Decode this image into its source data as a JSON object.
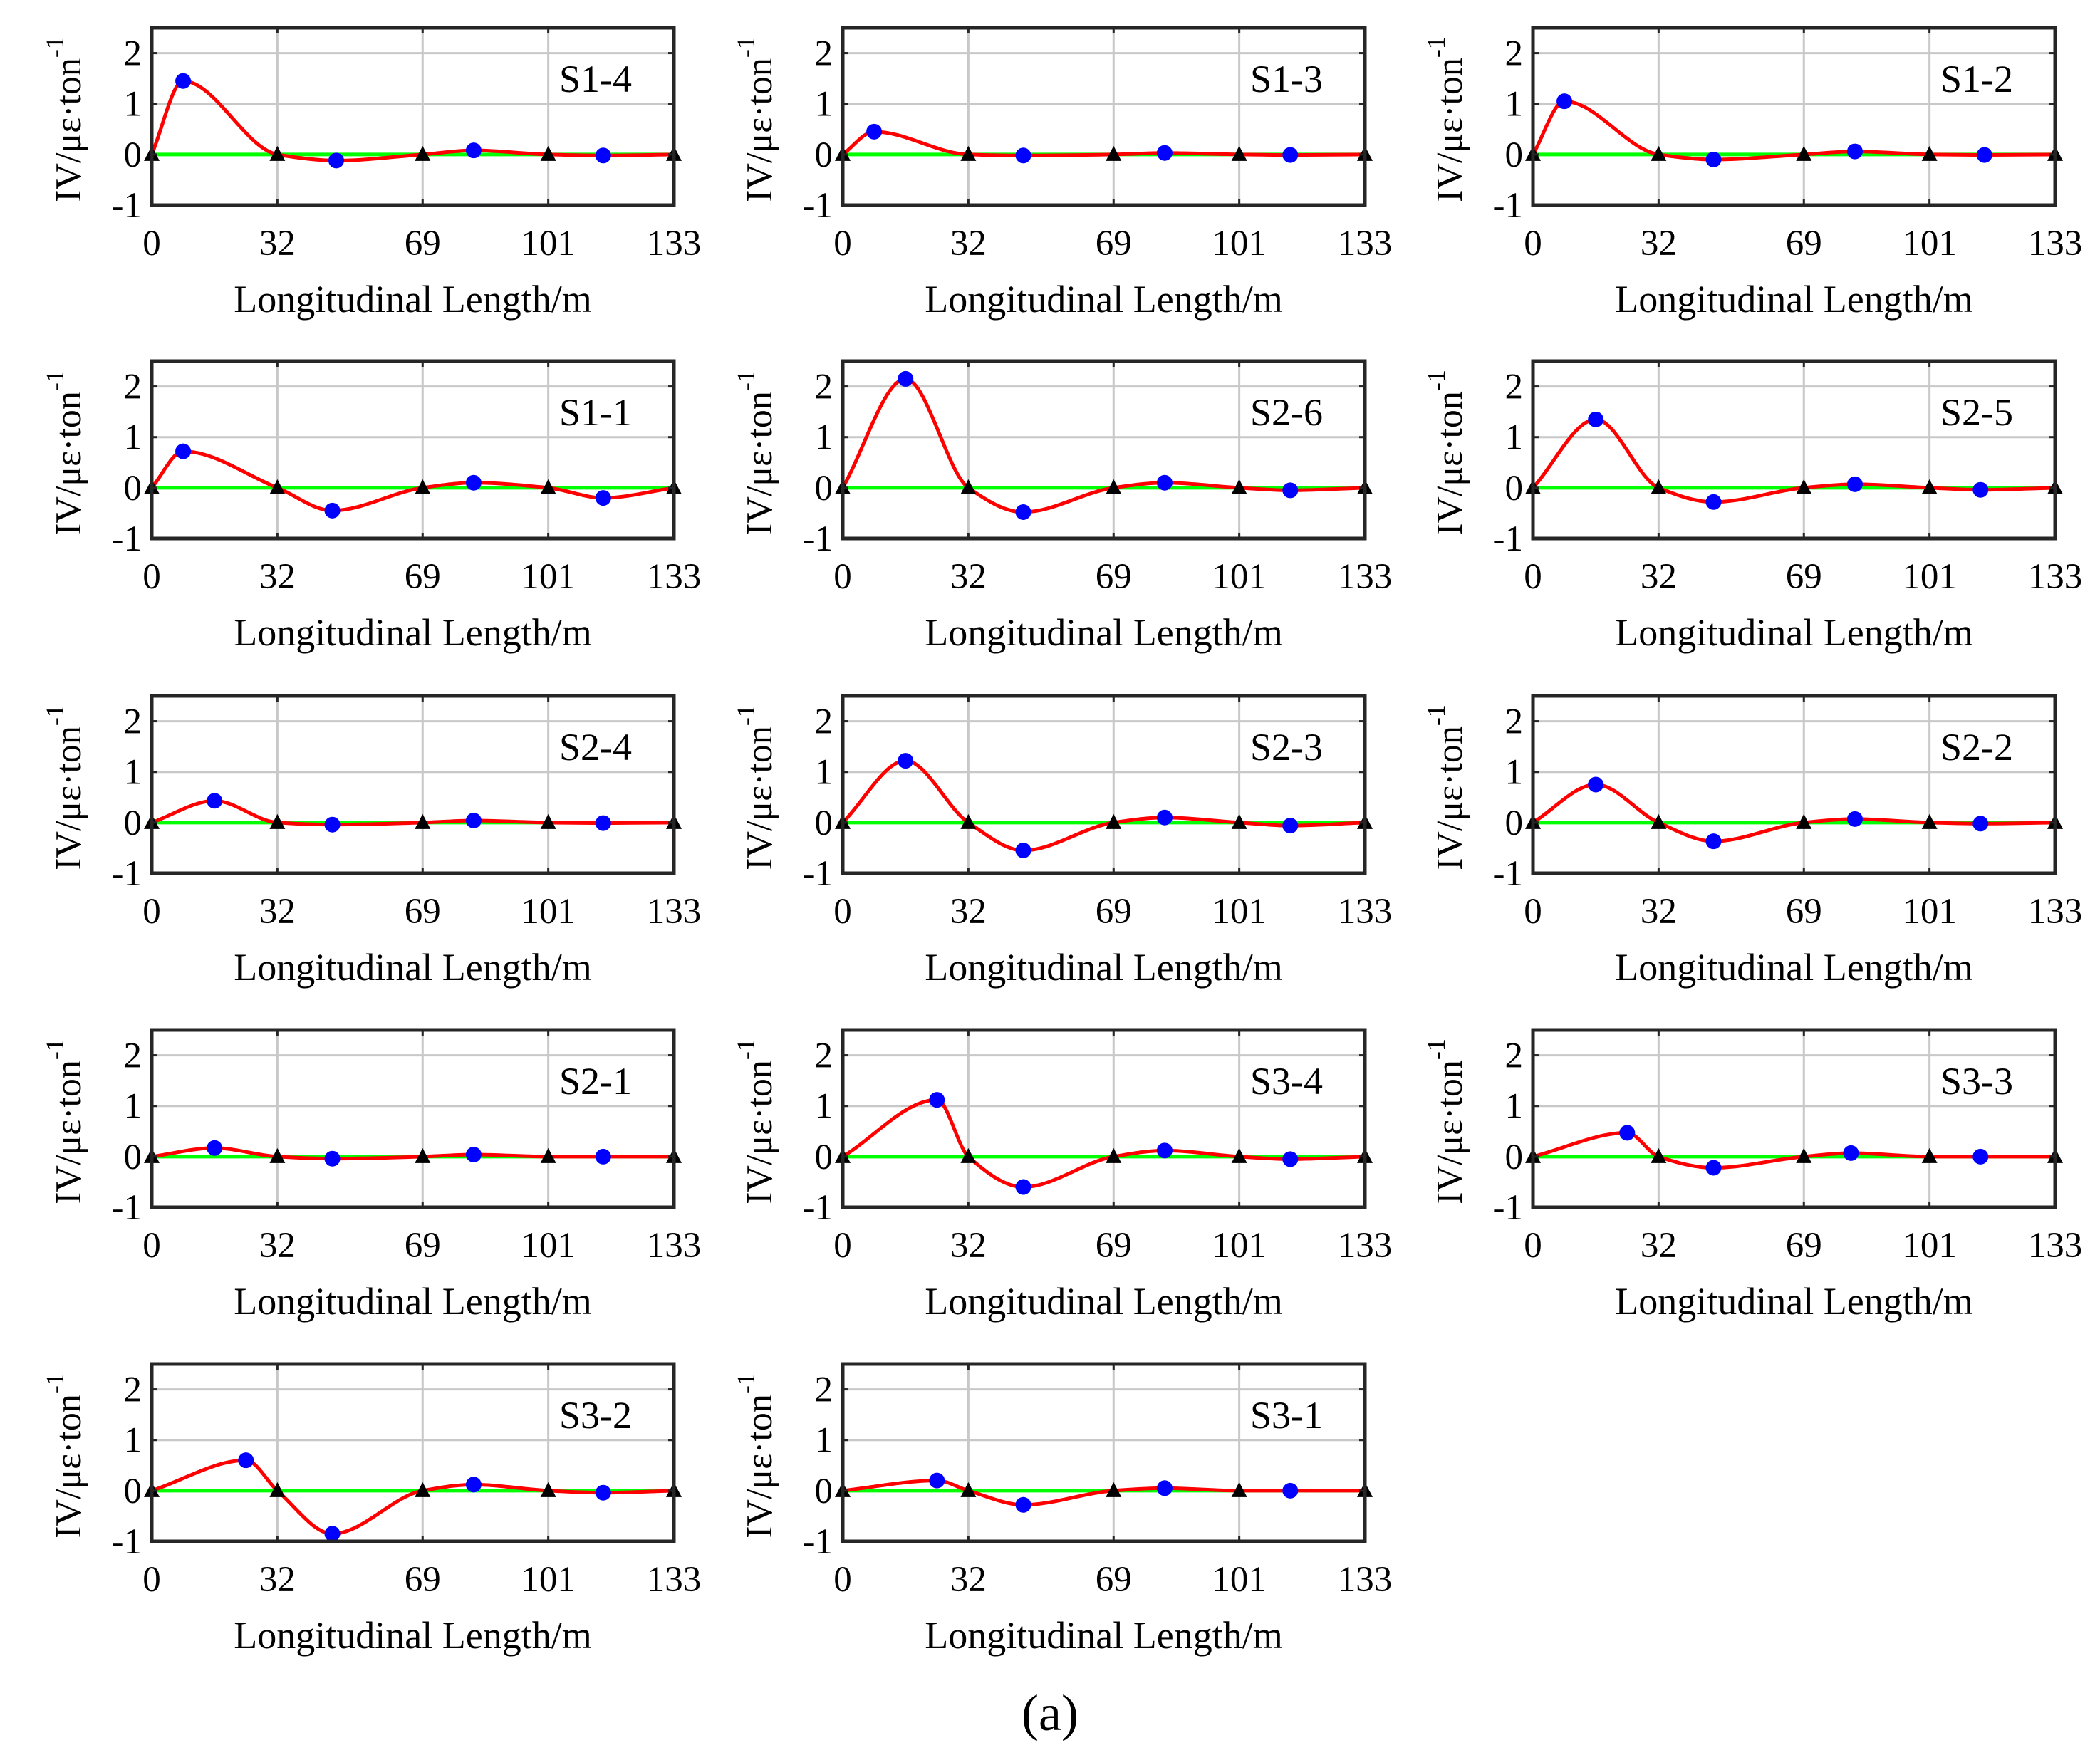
{
  "figure_label": "(a)",
  "colors": {
    "curve": "#ff0000",
    "zero_line": "#00ff00",
    "peak_marker": "#0000ff",
    "support_marker": "#000000",
    "grid": "#c8c8c8",
    "frame": "#262626"
  },
  "chart_data": [
    {
      "type": "line",
      "title": "S1-4",
      "xlabel": "Longitudinal Length/m",
      "ylabel": "IV/με·ton",
      "ylabel_sup": "-1",
      "xticks": [
        0,
        32,
        69,
        101,
        133
      ],
      "yticks": [
        -1,
        0,
        1,
        2
      ],
      "xlim": [
        0,
        133
      ],
      "ylim": [
        -1,
        2.5
      ],
      "grid": true,
      "supports_x": [
        0,
        32,
        69,
        101,
        133
      ],
      "peaks": [
        {
          "x": 8,
          "y": 1.45
        },
        {
          "x": 47,
          "y": -0.12
        },
        {
          "x": 82,
          "y": 0.08
        },
        {
          "x": 115,
          "y": -0.02
        }
      ],
      "curve": [
        [
          0,
          0
        ],
        [
          8,
          1.45
        ],
        [
          32,
          0
        ],
        [
          47,
          -0.12
        ],
        [
          69,
          0
        ],
        [
          82,
          0.08
        ],
        [
          101,
          0
        ],
        [
          115,
          -0.02
        ],
        [
          133,
          0
        ]
      ]
    },
    {
      "type": "line",
      "title": "S1-3",
      "xlabel": "Longitudinal Length/m",
      "ylabel": "IV/με·ton",
      "ylabel_sup": "-1",
      "xticks": [
        0,
        32,
        69,
        101,
        133
      ],
      "yticks": [
        -1,
        0,
        1,
        2
      ],
      "xlim": [
        0,
        133
      ],
      "ylim": [
        -1,
        2.5
      ],
      "grid": true,
      "supports_x": [
        0,
        32,
        69,
        101,
        133
      ],
      "peaks": [
        {
          "x": 8,
          "y": 0.45
        },
        {
          "x": 46,
          "y": -0.02
        },
        {
          "x": 82,
          "y": 0.03
        },
        {
          "x": 114,
          "y": -0.01
        }
      ],
      "curve": [
        [
          0,
          0
        ],
        [
          8,
          0.45
        ],
        [
          32,
          0
        ],
        [
          46,
          -0.02
        ],
        [
          69,
          0
        ],
        [
          82,
          0.03
        ],
        [
          101,
          0
        ],
        [
          114,
          -0.01
        ],
        [
          133,
          0
        ]
      ]
    },
    {
      "type": "line",
      "title": "S1-2",
      "xlabel": "Longitudinal Length/m",
      "ylabel": "IV/με·ton",
      "ylabel_sup": "-1",
      "xticks": [
        0,
        32,
        69,
        101,
        133
      ],
      "yticks": [
        -1,
        0,
        1,
        2
      ],
      "xlim": [
        0,
        133
      ],
      "ylim": [
        -1,
        2.5
      ],
      "grid": true,
      "supports_x": [
        0,
        32,
        69,
        101,
        133
      ],
      "peaks": [
        {
          "x": 8,
          "y": 1.05
        },
        {
          "x": 46,
          "y": -0.1
        },
        {
          "x": 82,
          "y": 0.06
        },
        {
          "x": 115,
          "y": -0.01
        }
      ],
      "curve": [
        [
          0,
          0
        ],
        [
          8,
          1.05
        ],
        [
          32,
          0
        ],
        [
          46,
          -0.1
        ],
        [
          69,
          0
        ],
        [
          82,
          0.06
        ],
        [
          101,
          0
        ],
        [
          115,
          -0.01
        ],
        [
          133,
          0
        ]
      ]
    },
    {
      "type": "line",
      "title": "S1-1",
      "xlabel": "Longitudinal Length/m",
      "ylabel": "IV/με·ton",
      "ylabel_sup": "-1",
      "xticks": [
        0,
        32,
        69,
        101,
        133
      ],
      "yticks": [
        -1,
        0,
        1,
        2
      ],
      "xlim": [
        0,
        133
      ],
      "ylim": [
        -1,
        2.5
      ],
      "grid": true,
      "supports_x": [
        0,
        32,
        69,
        101,
        133
      ],
      "peaks": [
        {
          "x": 8,
          "y": 0.72
        },
        {
          "x": 46,
          "y": -0.45
        },
        {
          "x": 82,
          "y": 0.1
        },
        {
          "x": 115,
          "y": -0.2
        }
      ],
      "curve": [
        [
          0,
          0
        ],
        [
          8,
          0.72
        ],
        [
          32,
          0
        ],
        [
          46,
          -0.45
        ],
        [
          69,
          0
        ],
        [
          82,
          0.1
        ],
        [
          101,
          0
        ],
        [
          115,
          -0.2
        ],
        [
          133,
          0
        ]
      ]
    },
    {
      "type": "line",
      "title": "S2-6",
      "xlabel": "Longitudinal Length/m",
      "ylabel": "IV/με·ton",
      "ylabel_sup": "-1",
      "xticks": [
        0,
        32,
        69,
        101,
        133
      ],
      "yticks": [
        -1,
        0,
        1,
        2
      ],
      "xlim": [
        0,
        133
      ],
      "ylim": [
        -1,
        2.5
      ],
      "grid": true,
      "supports_x": [
        0,
        32,
        69,
        101,
        133
      ],
      "peaks": [
        {
          "x": 16,
          "y": 2.15
        },
        {
          "x": 46,
          "y": -0.48
        },
        {
          "x": 82,
          "y": 0.1
        },
        {
          "x": 114,
          "y": -0.05
        }
      ],
      "curve": [
        [
          0,
          0
        ],
        [
          16,
          2.15
        ],
        [
          32,
          0
        ],
        [
          46,
          -0.48
        ],
        [
          69,
          0
        ],
        [
          82,
          0.1
        ],
        [
          101,
          0
        ],
        [
          114,
          -0.05
        ],
        [
          133,
          0
        ]
      ]
    },
    {
      "type": "line",
      "title": "S2-5",
      "xlabel": "Longitudinal Length/m",
      "ylabel": "IV/με·ton",
      "ylabel_sup": "-1",
      "xticks": [
        0,
        32,
        69,
        101,
        133
      ],
      "yticks": [
        -1,
        0,
        1,
        2
      ],
      "xlim": [
        0,
        133
      ],
      "ylim": [
        -1,
        2.5
      ],
      "grid": true,
      "supports_x": [
        0,
        32,
        69,
        101,
        133
      ],
      "peaks": [
        {
          "x": 16,
          "y": 1.35
        },
        {
          "x": 46,
          "y": -0.28
        },
        {
          "x": 82,
          "y": 0.07
        },
        {
          "x": 114,
          "y": -0.04
        }
      ],
      "curve": [
        [
          0,
          0
        ],
        [
          16,
          1.35
        ],
        [
          32,
          0
        ],
        [
          46,
          -0.28
        ],
        [
          69,
          0
        ],
        [
          82,
          0.07
        ],
        [
          101,
          0
        ],
        [
          114,
          -0.04
        ],
        [
          133,
          0
        ]
      ]
    },
    {
      "type": "line",
      "title": "S2-4",
      "xlabel": "Longitudinal Length/m",
      "ylabel": "IV/με·ton",
      "ylabel_sup": "-1",
      "xticks": [
        0,
        32,
        69,
        101,
        133
      ],
      "yticks": [
        -1,
        0,
        1,
        2
      ],
      "xlim": [
        0,
        133
      ],
      "ylim": [
        -1,
        2.5
      ],
      "grid": true,
      "supports_x": [
        0,
        32,
        69,
        101,
        133
      ],
      "peaks": [
        {
          "x": 16,
          "y": 0.43
        },
        {
          "x": 46,
          "y": -0.04
        },
        {
          "x": 82,
          "y": 0.04
        },
        {
          "x": 115,
          "y": -0.01
        }
      ],
      "curve": [
        [
          0,
          0
        ],
        [
          16,
          0.43
        ],
        [
          32,
          0
        ],
        [
          46,
          -0.04
        ],
        [
          69,
          0
        ],
        [
          82,
          0.04
        ],
        [
          101,
          0
        ],
        [
          115,
          -0.01
        ],
        [
          133,
          0
        ]
      ]
    },
    {
      "type": "line",
      "title": "S2-3",
      "xlabel": "Longitudinal Length/m",
      "ylabel": "IV/με·ton",
      "ylabel_sup": "-1",
      "xticks": [
        0,
        32,
        69,
        101,
        133
      ],
      "yticks": [
        -1,
        0,
        1,
        2
      ],
      "xlim": [
        0,
        133
      ],
      "ylim": [
        -1,
        2.5
      ],
      "grid": true,
      "supports_x": [
        0,
        32,
        69,
        101,
        133
      ],
      "peaks": [
        {
          "x": 16,
          "y": 1.22
        },
        {
          "x": 46,
          "y": -0.55
        },
        {
          "x": 82,
          "y": 0.1
        },
        {
          "x": 114,
          "y": -0.06
        }
      ],
      "curve": [
        [
          0,
          0
        ],
        [
          16,
          1.22
        ],
        [
          32,
          0
        ],
        [
          46,
          -0.55
        ],
        [
          69,
          0
        ],
        [
          82,
          0.1
        ],
        [
          101,
          0
        ],
        [
          114,
          -0.06
        ],
        [
          133,
          0
        ]
      ]
    },
    {
      "type": "line",
      "title": "S2-2",
      "xlabel": "Longitudinal Length/m",
      "ylabel": "IV/με·ton",
      "ylabel_sup": "-1",
      "xticks": [
        0,
        32,
        69,
        101,
        133
      ],
      "yticks": [
        -1,
        0,
        1,
        2
      ],
      "xlim": [
        0,
        133
      ],
      "ylim": [
        -1,
        2.5
      ],
      "grid": true,
      "supports_x": [
        0,
        32,
        69,
        101,
        133
      ],
      "peaks": [
        {
          "x": 16,
          "y": 0.75
        },
        {
          "x": 46,
          "y": -0.37
        },
        {
          "x": 82,
          "y": 0.07
        },
        {
          "x": 114,
          "y": -0.02
        }
      ],
      "curve": [
        [
          0,
          0
        ],
        [
          16,
          0.75
        ],
        [
          32,
          0
        ],
        [
          46,
          -0.37
        ],
        [
          69,
          0
        ],
        [
          82,
          0.07
        ],
        [
          101,
          0
        ],
        [
          114,
          -0.02
        ],
        [
          133,
          0
        ]
      ]
    },
    {
      "type": "line",
      "title": "S2-1",
      "xlabel": "Longitudinal Length/m",
      "ylabel": "IV/με·ton",
      "ylabel_sup": "-1",
      "xticks": [
        0,
        32,
        69,
        101,
        133
      ],
      "yticks": [
        -1,
        0,
        1,
        2
      ],
      "xlim": [
        0,
        133
      ],
      "ylim": [
        -1,
        2.5
      ],
      "grid": true,
      "supports_x": [
        0,
        32,
        69,
        101,
        133
      ],
      "peaks": [
        {
          "x": 16,
          "y": 0.17
        },
        {
          "x": 46,
          "y": -0.04
        },
        {
          "x": 82,
          "y": 0.04
        },
        {
          "x": 115,
          "y": 0
        }
      ],
      "curve": [
        [
          0,
          0
        ],
        [
          16,
          0.17
        ],
        [
          32,
          0
        ],
        [
          46,
          -0.04
        ],
        [
          69,
          0
        ],
        [
          82,
          0.04
        ],
        [
          101,
          0
        ],
        [
          115,
          0
        ],
        [
          133,
          0
        ]
      ]
    },
    {
      "type": "line",
      "title": "S3-4",
      "xlabel": "Longitudinal Length/m",
      "ylabel": "IV/με·ton",
      "ylabel_sup": "-1",
      "xticks": [
        0,
        32,
        69,
        101,
        133
      ],
      "yticks": [
        -1,
        0,
        1,
        2
      ],
      "xlim": [
        0,
        133
      ],
      "ylim": [
        -1,
        2.5
      ],
      "grid": true,
      "supports_x": [
        0,
        32,
        69,
        101,
        133
      ],
      "peaks": [
        {
          "x": 24,
          "y": 1.12
        },
        {
          "x": 46,
          "y": -0.6
        },
        {
          "x": 82,
          "y": 0.12
        },
        {
          "x": 114,
          "y": -0.05
        }
      ],
      "curve": [
        [
          0,
          0
        ],
        [
          24,
          1.12
        ],
        [
          32,
          0
        ],
        [
          46,
          -0.6
        ],
        [
          69,
          0
        ],
        [
          82,
          0.12
        ],
        [
          101,
          0
        ],
        [
          114,
          -0.05
        ],
        [
          133,
          0
        ]
      ]
    },
    {
      "type": "line",
      "title": "S3-3",
      "xlabel": "Longitudinal Length/m",
      "ylabel": "IV/με·ton",
      "ylabel_sup": "-1",
      "xticks": [
        0,
        32,
        69,
        101,
        133
      ],
      "yticks": [
        -1,
        0,
        1,
        2
      ],
      "xlim": [
        0,
        133
      ],
      "ylim": [
        -1,
        2.5
      ],
      "grid": true,
      "supports_x": [
        0,
        32,
        69,
        101,
        133
      ],
      "peaks": [
        {
          "x": 24,
          "y": 0.47
        },
        {
          "x": 46,
          "y": -0.22
        },
        {
          "x": 81,
          "y": 0.07
        },
        {
          "x": 114,
          "y": 0
        }
      ],
      "curve": [
        [
          0,
          0
        ],
        [
          24,
          0.47
        ],
        [
          32,
          0
        ],
        [
          46,
          -0.22
        ],
        [
          69,
          0
        ],
        [
          81,
          0.07
        ],
        [
          101,
          0
        ],
        [
          114,
          0
        ],
        [
          133,
          0
        ]
      ]
    },
    {
      "type": "line",
      "title": "S3-2",
      "xlabel": "Longitudinal Length/m",
      "ylabel": "IV/με·ton",
      "ylabel_sup": "-1",
      "xticks": [
        0,
        32,
        69,
        101,
        133
      ],
      "yticks": [
        -1,
        0,
        1,
        2
      ],
      "xlim": [
        0,
        133
      ],
      "ylim": [
        -1,
        2.5
      ],
      "grid": true,
      "supports_x": [
        0,
        32,
        69,
        101,
        133
      ],
      "peaks": [
        {
          "x": 24,
          "y": 0.6
        },
        {
          "x": 46,
          "y": -0.85
        },
        {
          "x": 82,
          "y": 0.12
        },
        {
          "x": 115,
          "y": -0.04
        }
      ],
      "curve": [
        [
          0,
          0
        ],
        [
          24,
          0.6
        ],
        [
          32,
          0
        ],
        [
          46,
          -0.85
        ],
        [
          69,
          0
        ],
        [
          82,
          0.12
        ],
        [
          101,
          0
        ],
        [
          115,
          -0.04
        ],
        [
          133,
          0
        ]
      ]
    },
    {
      "type": "line",
      "title": "S3-1",
      "xlabel": "Longitudinal Length/m",
      "ylabel": "IV/με·ton",
      "ylabel_sup": "-1",
      "xticks": [
        0,
        32,
        69,
        101,
        133
      ],
      "yticks": [
        -1,
        0,
        1,
        2
      ],
      "xlim": [
        0,
        133
      ],
      "ylim": [
        -1,
        2.5
      ],
      "grid": true,
      "supports_x": [
        0,
        32,
        69,
        101,
        133
      ],
      "peaks": [
        {
          "x": 24,
          "y": 0.2
        },
        {
          "x": 46,
          "y": -0.28
        },
        {
          "x": 82,
          "y": 0.05
        },
        {
          "x": 114,
          "y": 0
        }
      ],
      "curve": [
        [
          0,
          0
        ],
        [
          24,
          0.2
        ],
        [
          32,
          0
        ],
        [
          46,
          -0.28
        ],
        [
          69,
          0
        ],
        [
          82,
          0.05
        ],
        [
          101,
          0
        ],
        [
          114,
          0
        ],
        [
          133,
          0
        ]
      ]
    }
  ]
}
